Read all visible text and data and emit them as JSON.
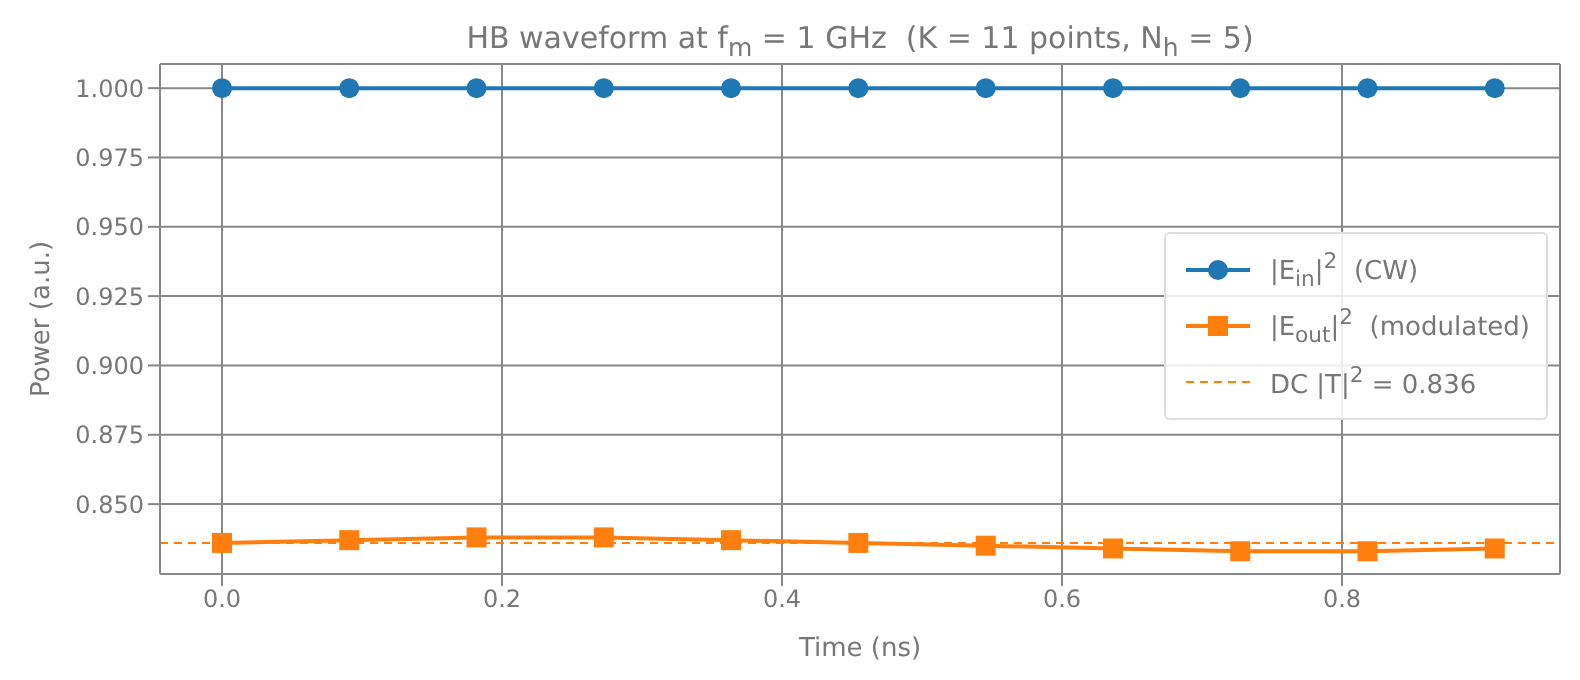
{
  "chart_data": {
    "type": "line",
    "title": "HB waveform at f$_{m}$ = 1 GHz  (K = 11 points, N$_{h}$ = 5)",
    "xlabel": "Time (ns)",
    "ylabel": "Power (a.u.)",
    "x": [
      0,
      0.0909,
      0.1818,
      0.2727,
      0.3636,
      0.4545,
      0.5455,
      0.6364,
      0.7273,
      0.8182,
      0.9091
    ],
    "series": [
      {
        "name": "|E$_{in}$|$^{2}$  (CW)",
        "color": "#1f77b4",
        "marker": "circle",
        "values": [
          1,
          1,
          1,
          1,
          1,
          1,
          1,
          1,
          1,
          1,
          1
        ]
      },
      {
        "name": "|E$_{out}$|$^{2}$  (modulated)",
        "color": "#ff7f0e",
        "marker": "square",
        "values": [
          0.836,
          0.837,
          0.838,
          0.838,
          0.837,
          0.836,
          0.835,
          0.834,
          0.833,
          0.833,
          0.834
        ]
      }
    ],
    "ref_lines": [
      {
        "axis": "y",
        "value": 0.836,
        "label": "DC |T|$^{2}$ = 0.836",
        "color": "#ff7f0e",
        "line_style": "dashed"
      }
    ],
    "xlim": [
      -0.0443,
      0.9557
    ],
    "xticks": [
      {
        "value": 0,
        "label": "0.0"
      },
      {
        "value": 0.2,
        "label": "0.2"
      },
      {
        "value": 0.4,
        "label": "0.4"
      },
      {
        "value": 0.6,
        "label": "0.6"
      },
      {
        "value": 0.8,
        "label": "0.8"
      }
    ],
    "ylim": [
      0.8248,
      1.0087
    ],
    "yticks": [
      {
        "value": 0.85,
        "label": "0.850"
      },
      {
        "value": 0.875,
        "label": "0.875"
      },
      {
        "value": 0.9,
        "label": "0.900"
      },
      {
        "value": 0.925,
        "label": "0.925"
      },
      {
        "value": 0.95,
        "label": "0.950"
      },
      {
        "value": 0.975,
        "label": "0.975"
      },
      {
        "value": 1,
        "label": "1.000"
      }
    ],
    "grid": true,
    "legend": "right"
  }
}
